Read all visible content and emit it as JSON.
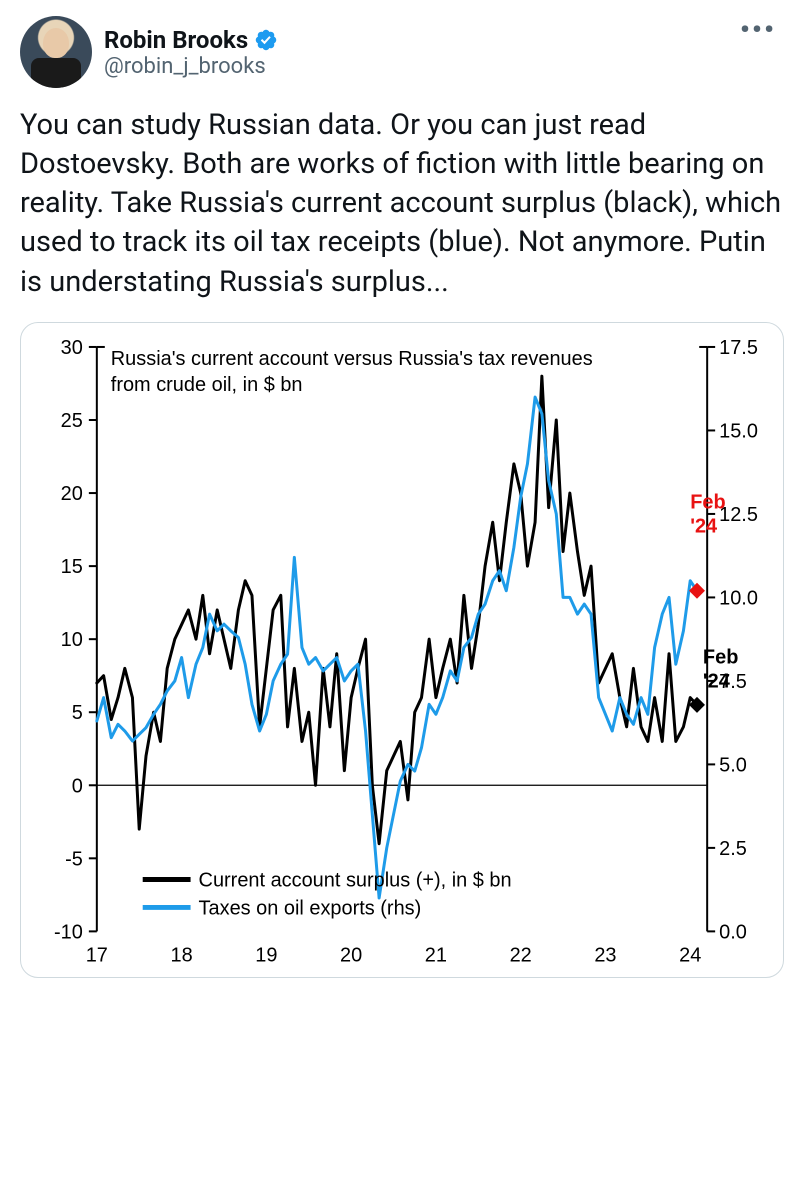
{
  "tweet": {
    "author": {
      "display_name": "Robin Brooks",
      "handle": "@robin_j_brooks",
      "verified": true
    },
    "text": "You can study Russian data. Or you can just read Dostoevsky. Both are works of fiction with little bearing on reality. Take Russia's current account surplus (black), which used to track its oil tax receipts (blue). Not anymore. Putin is understating Russia's surplus...",
    "more_icon": "•••"
  },
  "chart": {
    "type": "line",
    "title": "Russia's current account versus Russia's tax revenues from crude oil, in $ bn",
    "background_color": "#ffffff",
    "axis_color": "#000000",
    "axis_line_width": 2,
    "x": {
      "ticks": [
        17,
        18,
        19,
        20,
        21,
        22,
        23,
        24
      ],
      "min": 17,
      "max": 24.2
    },
    "y_left": {
      "ticks": [
        -10,
        -5,
        0,
        5,
        10,
        15,
        20,
        25,
        30
      ],
      "min": -10,
      "max": 30
    },
    "y_right": {
      "ticks": [
        0.0,
        2.5,
        5.0,
        7.5,
        10.0,
        12.5,
        15.0,
        17.5
      ],
      "min": 0.0,
      "max": 17.5
    },
    "series": [
      {
        "name": "Current account surplus (+), in $ bn",
        "color": "#000000",
        "line_width": 3,
        "axis": "left",
        "data": [
          [
            17.0,
            7.0
          ],
          [
            17.08,
            7.5
          ],
          [
            17.17,
            4.5
          ],
          [
            17.25,
            6.0
          ],
          [
            17.33,
            8.0
          ],
          [
            17.42,
            6.0
          ],
          [
            17.5,
            -3.0
          ],
          [
            17.58,
            2.0
          ],
          [
            17.67,
            5.0
          ],
          [
            17.75,
            3.0
          ],
          [
            17.83,
            8.0
          ],
          [
            17.92,
            10.0
          ],
          [
            18.0,
            11.0
          ],
          [
            18.08,
            12.0
          ],
          [
            18.17,
            10.0
          ],
          [
            18.25,
            13.0
          ],
          [
            18.33,
            9.0
          ],
          [
            18.42,
            12.0
          ],
          [
            18.5,
            10.0
          ],
          [
            18.58,
            8.0
          ],
          [
            18.67,
            12.0
          ],
          [
            18.75,
            14.0
          ],
          [
            18.83,
            13.0
          ],
          [
            18.92,
            4.0
          ],
          [
            19.0,
            8.0
          ],
          [
            19.08,
            12.0
          ],
          [
            19.17,
            13.0
          ],
          [
            19.25,
            4.0
          ],
          [
            19.33,
            8.0
          ],
          [
            19.42,
            3.0
          ],
          [
            19.5,
            5.0
          ],
          [
            19.58,
            0.0
          ],
          [
            19.67,
            8.0
          ],
          [
            19.75,
            4.0
          ],
          [
            19.83,
            9.0
          ],
          [
            19.92,
            1.0
          ],
          [
            20.0,
            6.0
          ],
          [
            20.08,
            8.0
          ],
          [
            20.17,
            10.0
          ],
          [
            20.25,
            0.0
          ],
          [
            20.33,
            -4.0
          ],
          [
            20.42,
            1.0
          ],
          [
            20.5,
            2.0
          ],
          [
            20.58,
            3.0
          ],
          [
            20.67,
            -1.0
          ],
          [
            20.75,
            5.0
          ],
          [
            20.83,
            6.0
          ],
          [
            20.92,
            10.0
          ],
          [
            21.0,
            6.0
          ],
          [
            21.08,
            8.0
          ],
          [
            21.17,
            10.0
          ],
          [
            21.25,
            7.0
          ],
          [
            21.33,
            13.0
          ],
          [
            21.42,
            8.0
          ],
          [
            21.5,
            11.0
          ],
          [
            21.58,
            15.0
          ],
          [
            21.67,
            18.0
          ],
          [
            21.75,
            14.0
          ],
          [
            21.83,
            18.0
          ],
          [
            21.92,
            22.0
          ],
          [
            22.0,
            20.0
          ],
          [
            22.08,
            15.0
          ],
          [
            22.17,
            18.0
          ],
          [
            22.25,
            28.0
          ],
          [
            22.33,
            19.0
          ],
          [
            22.42,
            25.0
          ],
          [
            22.5,
            16.0
          ],
          [
            22.58,
            20.0
          ],
          [
            22.67,
            16.0
          ],
          [
            22.75,
            13.0
          ],
          [
            22.83,
            15.0
          ],
          [
            22.92,
            7.0
          ],
          [
            23.0,
            8.0
          ],
          [
            23.08,
            9.0
          ],
          [
            23.17,
            6.0
          ],
          [
            23.25,
            4.0
          ],
          [
            23.33,
            8.0
          ],
          [
            23.42,
            4.0
          ],
          [
            23.5,
            3.0
          ],
          [
            23.58,
            6.0
          ],
          [
            23.67,
            3.0
          ],
          [
            23.75,
            9.0
          ],
          [
            23.83,
            3.0
          ],
          [
            23.92,
            4.0
          ],
          [
            24.0,
            6.0
          ],
          [
            24.08,
            5.5
          ]
        ],
        "marker_end": {
          "x": 24.08,
          "y": 5.5,
          "shape": "diamond",
          "color": "#000000"
        },
        "annotation": {
          "text1": "Feb",
          "text2": "'24",
          "color": "#000000",
          "x": 24.15,
          "y": 7.5
        }
      },
      {
        "name": "Taxes on oil exports (rhs)",
        "color": "#1e9be9",
        "line_width": 3,
        "axis": "right",
        "data": [
          [
            17.0,
            6.3
          ],
          [
            17.08,
            7.0
          ],
          [
            17.17,
            5.8
          ],
          [
            17.25,
            6.2
          ],
          [
            17.33,
            6.0
          ],
          [
            17.42,
            5.7
          ],
          [
            17.5,
            5.9
          ],
          [
            17.58,
            6.1
          ],
          [
            17.67,
            6.5
          ],
          [
            17.75,
            6.8
          ],
          [
            17.83,
            7.2
          ],
          [
            17.92,
            7.5
          ],
          [
            18.0,
            8.2
          ],
          [
            18.08,
            7.0
          ],
          [
            18.17,
            8.0
          ],
          [
            18.25,
            8.5
          ],
          [
            18.33,
            9.5
          ],
          [
            18.42,
            9.0
          ],
          [
            18.5,
            9.2
          ],
          [
            18.58,
            9.0
          ],
          [
            18.67,
            8.8
          ],
          [
            18.75,
            8.0
          ],
          [
            18.83,
            6.8
          ],
          [
            18.92,
            6.0
          ],
          [
            19.0,
            6.5
          ],
          [
            19.08,
            7.5
          ],
          [
            19.17,
            8.0
          ],
          [
            19.25,
            8.3
          ],
          [
            19.33,
            11.2
          ],
          [
            19.42,
            8.5
          ],
          [
            19.5,
            8.0
          ],
          [
            19.58,
            8.2
          ],
          [
            19.67,
            7.8
          ],
          [
            19.75,
            8.0
          ],
          [
            19.83,
            8.2
          ],
          [
            19.92,
            7.5
          ],
          [
            20.0,
            7.8
          ],
          [
            20.08,
            8.0
          ],
          [
            20.17,
            6.0
          ],
          [
            20.25,
            3.5
          ],
          [
            20.33,
            1.0
          ],
          [
            20.42,
            2.5
          ],
          [
            20.5,
            3.5
          ],
          [
            20.58,
            4.5
          ],
          [
            20.67,
            5.0
          ],
          [
            20.75,
            4.8
          ],
          [
            20.83,
            5.5
          ],
          [
            20.92,
            6.8
          ],
          [
            21.0,
            6.5
          ],
          [
            21.08,
            7.0
          ],
          [
            21.17,
            7.8
          ],
          [
            21.25,
            7.5
          ],
          [
            21.33,
            8.5
          ],
          [
            21.42,
            8.8
          ],
          [
            21.5,
            9.5
          ],
          [
            21.58,
            9.8
          ],
          [
            21.67,
            10.5
          ],
          [
            21.75,
            10.8
          ],
          [
            21.83,
            10.2
          ],
          [
            21.92,
            11.5
          ],
          [
            22.0,
            13.0
          ],
          [
            22.08,
            14.0
          ],
          [
            22.17,
            16.0
          ],
          [
            22.25,
            15.5
          ],
          [
            22.33,
            13.5
          ],
          [
            22.42,
            12.5
          ],
          [
            22.5,
            10.0
          ],
          [
            22.58,
            10.0
          ],
          [
            22.67,
            9.5
          ],
          [
            22.75,
            9.8
          ],
          [
            22.83,
            9.5
          ],
          [
            22.92,
            7.0
          ],
          [
            23.0,
            6.5
          ],
          [
            23.08,
            6.0
          ],
          [
            23.17,
            7.0
          ],
          [
            23.25,
            6.5
          ],
          [
            23.33,
            6.2
          ],
          [
            23.42,
            7.0
          ],
          [
            23.5,
            6.5
          ],
          [
            23.58,
            8.5
          ],
          [
            23.67,
            9.5
          ],
          [
            23.75,
            10.0
          ],
          [
            23.83,
            8.0
          ],
          [
            23.92,
            9.0
          ],
          [
            24.0,
            10.5
          ],
          [
            24.08,
            10.2
          ]
        ],
        "marker_end": {
          "x": 24.08,
          "y": 10.2,
          "shape": "diamond",
          "color": "#e81212"
        },
        "annotation": {
          "text1": "Feb",
          "text2": "'24",
          "color": "#e81212",
          "x": 24.0,
          "y": 12.3
        }
      }
    ],
    "legend": {
      "items": [
        {
          "label": "Current account surplus (+), in $ bn",
          "color": "#000000"
        },
        {
          "label": "Taxes on oil exports (rhs)",
          "color": "#1e9be9"
        }
      ]
    },
    "fonts": {
      "axis": 20,
      "title": 20,
      "legend": 20,
      "annotation": 20
    }
  }
}
